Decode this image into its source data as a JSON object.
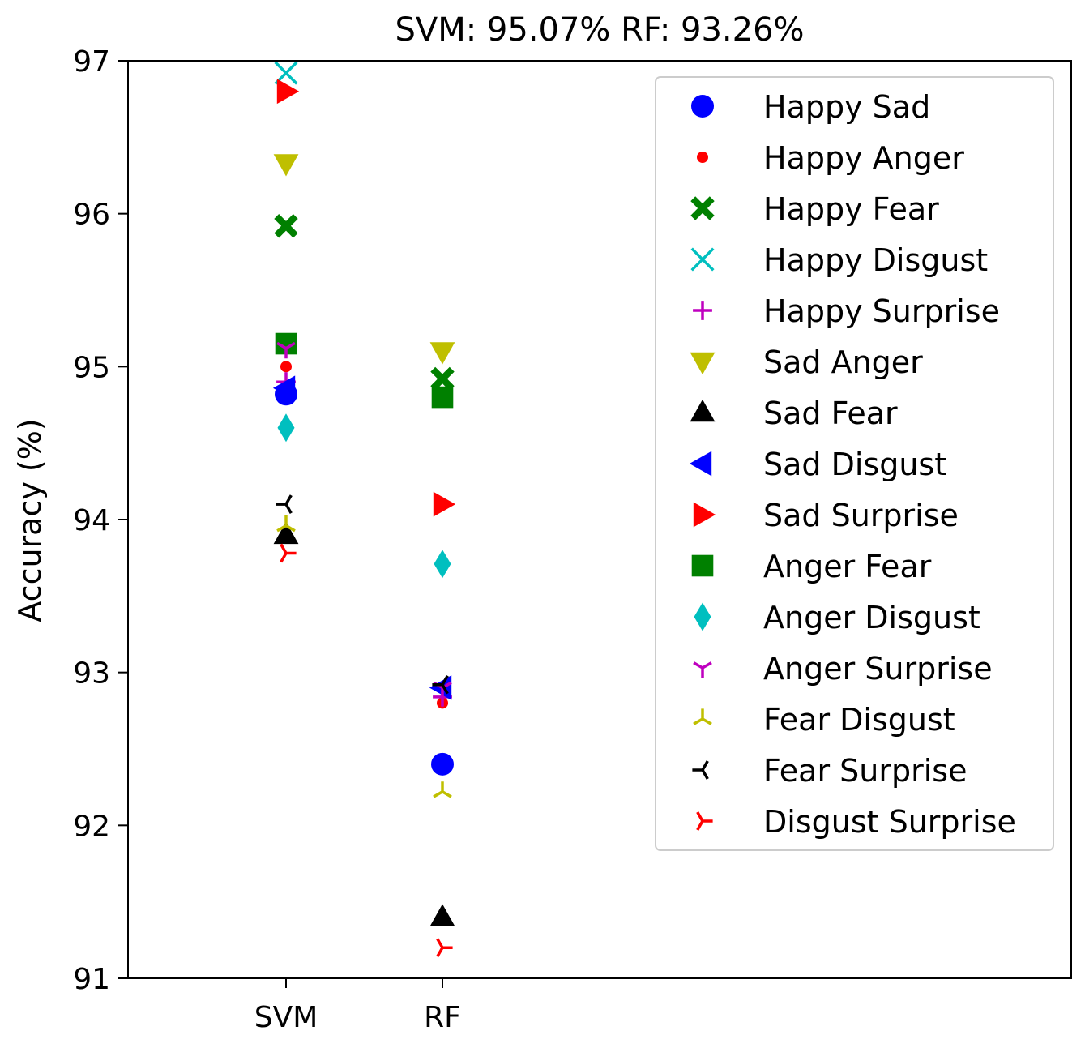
{
  "chart_data": {
    "type": "scatter",
    "title": "SVM: 95.07%   RF: 93.26%",
    "xlabel": "",
    "ylabel": "Accuracy (%)",
    "categories": [
      "SVM",
      "RF"
    ],
    "ylim": [
      91,
      97
    ],
    "yticks": [
      "91",
      "92",
      "93",
      "94",
      "95",
      "96",
      "97"
    ],
    "grid": false,
    "legend_position": "top-right",
    "series": [
      {
        "name": "Happy Sad",
        "values": [
          94.82,
          92.4
        ],
        "color": "#0000ff",
        "marker": "circle"
      },
      {
        "name": "Happy Anger",
        "values": [
          95.0,
          92.8
        ],
        "color": "#ff0000",
        "marker": "point"
      },
      {
        "name": "Happy Fear",
        "values": [
          95.92,
          94.92
        ],
        "color": "#008000",
        "marker": "x-filled"
      },
      {
        "name": "Happy Disgust",
        "values": [
          96.92,
          null
        ],
        "color": "#00bfbf",
        "marker": "x"
      },
      {
        "name": "Happy Surprise",
        "values": [
          94.9,
          92.84
        ],
        "color": "#bf00bf",
        "marker": "plus"
      },
      {
        "name": "Sad Anger",
        "values": [
          96.33,
          95.1
        ],
        "color": "#bfbf00",
        "marker": "triangle-down"
      },
      {
        "name": "Sad Fear",
        "values": [
          93.9,
          91.4
        ],
        "color": "#000000",
        "marker": "triangle-up"
      },
      {
        "name": "Sad Disgust",
        "values": [
          94.86,
          92.9
        ],
        "color": "#0000ff",
        "marker": "triangle-left"
      },
      {
        "name": "Sad Surprise",
        "values": [
          96.8,
          94.1
        ],
        "color": "#ff0000",
        "marker": "triangle-right"
      },
      {
        "name": "Anger Fear",
        "values": [
          95.15,
          94.8
        ],
        "color": "#008000",
        "marker": "square"
      },
      {
        "name": "Anger Disgust",
        "values": [
          94.6,
          93.71
        ],
        "color": "#00bfbf",
        "marker": "diamond"
      },
      {
        "name": "Anger Surprise",
        "values": [
          95.12,
          92.9
        ],
        "color": "#bf00bf",
        "marker": "tri-down"
      },
      {
        "name": "Fear Disgust",
        "values": [
          93.96,
          92.22
        ],
        "color": "#bfbf00",
        "marker": "tri-up"
      },
      {
        "name": "Fear Surprise",
        "values": [
          94.1,
          92.92
        ],
        "color": "#000000",
        "marker": "tri-left"
      },
      {
        "name": "Disgust Surprise",
        "values": [
          93.78,
          91.2
        ],
        "color": "#ff0000",
        "marker": "tri-right"
      }
    ]
  }
}
